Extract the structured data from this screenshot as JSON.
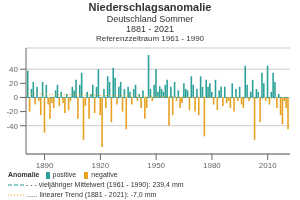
{
  "chart_data": {
    "type": "bar",
    "title": "Niederschlagsanomalie",
    "subtitle": [
      "Deutschland Sommer",
      "1881 - 2021",
      "Referenzzeitraum 1961 - 1990"
    ],
    "x": [
      1881,
      1882,
      1883,
      1884,
      1885,
      1886,
      1887,
      1888,
      1889,
      1890,
      1891,
      1892,
      1893,
      1894,
      1895,
      1896,
      1897,
      1898,
      1899,
      1900,
      1901,
      1902,
      1903,
      1904,
      1905,
      1906,
      1907,
      1908,
      1909,
      1910,
      1911,
      1912,
      1913,
      1914,
      1915,
      1916,
      1917,
      1918,
      1919,
      1920,
      1921,
      1922,
      1923,
      1924,
      1925,
      1926,
      1927,
      1928,
      1929,
      1930,
      1931,
      1932,
      1933,
      1934,
      1935,
      1936,
      1937,
      1938,
      1939,
      1940,
      1941,
      1942,
      1943,
      1944,
      1945,
      1946,
      1947,
      1948,
      1949,
      1950,
      1951,
      1952,
      1953,
      1954,
      1955,
      1956,
      1957,
      1958,
      1959,
      1960,
      1961,
      1962,
      1963,
      1964,
      1965,
      1966,
      1967,
      1968,
      1969,
      1970,
      1971,
      1972,
      1973,
      1974,
      1975,
      1976,
      1977,
      1978,
      1979,
      1980,
      1981,
      1982,
      1983,
      1984,
      1985,
      1986,
      1987,
      1988,
      1989,
      1990,
      1991,
      1992,
      1993,
      1994,
      1995,
      1996,
      1997,
      1998,
      1999,
      2000,
      2001,
      2002,
      2003,
      2004,
      2005,
      2006,
      2007,
      2008,
      2009,
      2010,
      2011,
      2012,
      2013,
      2014,
      2015,
      2016,
      2017,
      2018,
      2019,
      2020,
      2021
    ],
    "values": [
      38,
      -20,
      12,
      22,
      -10,
      15,
      -5,
      -25,
      22,
      -50,
      18,
      -10,
      -30,
      -8,
      -15,
      10,
      18,
      -12,
      8,
      -8,
      -22,
      5,
      -18,
      -5,
      15,
      10,
      25,
      -30,
      18,
      35,
      -60,
      -12,
      8,
      -30,
      5,
      18,
      -22,
      15,
      40,
      -25,
      -70,
      12,
      -15,
      30,
      22,
      -35,
      42,
      28,
      -10,
      15,
      22,
      -20,
      12,
      -45,
      15,
      8,
      -10,
      12,
      18,
      -5,
      5,
      -15,
      10,
      -30,
      -15,
      60,
      12,
      -5,
      18,
      40,
      8,
      16,
      12,
      8,
      18,
      25,
      -40,
      15,
      -25,
      22,
      -5,
      10,
      -15,
      -8,
      20,
      12,
      10,
      -18,
      30,
      18,
      -20,
      12,
      -25,
      30,
      15,
      -55,
      25,
      15,
      20,
      8,
      -10,
      25,
      -18,
      10,
      15,
      -12,
      15,
      -8,
      -5,
      -15,
      20,
      -20,
      12,
      -5,
      15,
      -10,
      -15,
      45,
      18,
      -5,
      8,
      25,
      -60,
      12,
      8,
      -35,
      35,
      20,
      -5,
      45,
      -10,
      8,
      35,
      22,
      -15,
      5,
      -25,
      -38,
      -5,
      -15,
      -45
    ],
    "colors": [
      "#2aa198",
      "#e8a020",
      "#2aa198",
      "#2aa198",
      "#e8a020",
      "#2aa198",
      "#e8a020",
      "#e8a020",
      "#2aa198",
      "#e8a020",
      "#2aa198",
      "#e8a020",
      "#e8a020",
      "#e8a020",
      "#e8a020",
      "#2aa198",
      "#2aa198",
      "#e8a020",
      "#2aa198",
      "#e8a020",
      "#e8a020",
      "#2aa198",
      "#e8a020",
      "#e8a020",
      "#2aa198",
      "#2aa198",
      "#2aa198",
      "#e8a020",
      "#2aa198",
      "#2aa198",
      "#e8a020",
      "#e8a020",
      "#2aa198",
      "#e8a020",
      "#2aa198",
      "#2aa198",
      "#e8a020",
      "#2aa198",
      "#2aa198",
      "#e8a020",
      "#e8a020",
      "#2aa198",
      "#e8a020",
      "#2aa198",
      "#2aa198",
      "#e8a020",
      "#2aa198",
      "#2aa198",
      "#e8a020",
      "#2aa198",
      "#2aa198",
      "#e8a020",
      "#2aa198",
      "#e8a020",
      "#2aa198",
      "#2aa198",
      "#e8a020",
      "#2aa198",
      "#2aa198",
      "#e8a020",
      "#2aa198",
      "#e8a020",
      "#2aa198",
      "#e8a020",
      "#e8a020",
      "#2aa198",
      "#2aa198",
      "#e8a020",
      "#2aa198",
      "#2aa198",
      "#2aa198",
      "#2aa198",
      "#2aa198",
      "#2aa198",
      "#2aa198",
      "#2aa198",
      "#e8a020",
      "#2aa198",
      "#e8a020",
      "#2aa198",
      "#e8a020",
      "#2aa198",
      "#e8a020",
      "#e8a020",
      "#2aa198",
      "#2aa198",
      "#2aa198",
      "#e8a020",
      "#2aa198",
      "#2aa198",
      "#e8a020",
      "#2aa198",
      "#e8a020",
      "#2aa198",
      "#2aa198",
      "#e8a020",
      "#2aa198",
      "#2aa198",
      "#2aa198",
      "#2aa198",
      "#e8a020",
      "#2aa198",
      "#e8a020",
      "#2aa198",
      "#2aa198",
      "#e8a020",
      "#2aa198",
      "#e8a020",
      "#e8a020",
      "#e8a020",
      "#2aa198",
      "#e8a020",
      "#2aa198",
      "#e8a020",
      "#2aa198",
      "#e8a020",
      "#e8a020",
      "#2aa198",
      "#2aa198",
      "#e8a020",
      "#2aa198",
      "#2aa198",
      "#e8a020",
      "#2aa198",
      "#2aa198",
      "#e8a020",
      "#2aa198",
      "#2aa198",
      "#e8a020",
      "#2aa198",
      "#e8a020",
      "#2aa198",
      "#2aa198",
      "#2aa198",
      "#e8a020",
      "#2aa198",
      "#e8a020",
      "#e8a020",
      "#e8a020",
      "#e8a020",
      "#e8a020"
    ],
    "xlim": [
      1880,
      2022
    ],
    "xticks": [
      1890,
      1920,
      1950,
      1980,
      2010
    ],
    "ylim": [
      -80,
      70
    ],
    "yticks": [
      -40,
      -20,
      0,
      20,
      40
    ],
    "grid": true,
    "bar_legend": {
      "title": "Anomalie",
      "entries": [
        {
          "name": "positive",
          "color": "#2aa198"
        },
        {
          "name": "negative",
          "color": "#e8a020"
        }
      ]
    },
    "reference_line": {
      "name": "- - -  vieljähriger Mittelwert (1961 - 1990): 239,4 mm",
      "y": 0,
      "color": "#2aa198",
      "line_style": "dashed"
    },
    "trend": {
      "name": "......  linearer Trend (1881 - 2021): -7,0 mm",
      "color": "#e8a020",
      "line_style": "dotted",
      "x": [
        1881,
        2021
      ],
      "values": [
        4.960993,
        -2.039007
      ]
    }
  }
}
